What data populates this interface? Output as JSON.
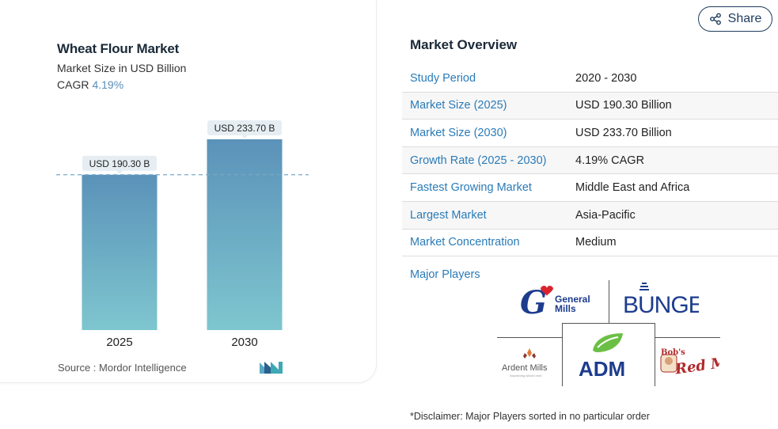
{
  "header": {
    "share_label": "Share"
  },
  "chart_header": {
    "title": "Wheat Flour Market",
    "subtitle": "Market Size in USD Billion",
    "cagr_label": "CAGR",
    "cagr_value": "4.19%"
  },
  "chart_data": {
    "type": "bar",
    "categories": [
      "2025",
      "2030"
    ],
    "values": [
      190.3,
      233.7
    ],
    "data_labels": [
      "USD 190.30 B",
      "USD 233.70 B"
    ],
    "title": "Wheat Flour Market",
    "subtitle": "Market Size in USD Billion",
    "ylim": [
      0,
      233.7
    ],
    "reference_line": 190.3,
    "colors": {
      "bar_top": "#5b92b9",
      "bar_bottom": "#7ec6cf",
      "label_bg": "#e6eef3"
    }
  },
  "source": {
    "text": "Source :  Mordor Intelligence"
  },
  "overview": {
    "title": "Market Overview",
    "rows": [
      {
        "key": "Study Period",
        "value": "2020 - 2030"
      },
      {
        "key": "Market Size (2025)",
        "value": "USD 190.30 Billion"
      },
      {
        "key": "Market Size (2030)",
        "value": "USD 233.70 Billion"
      },
      {
        "key": "Growth Rate (2025 - 2030)",
        "value": "4.19% CAGR"
      },
      {
        "key": "Fastest Growing Market",
        "value": "Middle East and Africa"
      },
      {
        "key": "Largest Market",
        "value": "Asia-Pacific"
      },
      {
        "key": "Market Concentration",
        "value": "Medium"
      }
    ]
  },
  "major_players": {
    "label": "Major Players",
    "logos": [
      "General Mills",
      "BUNGE",
      "Ardent Mills",
      "ADM",
      "Bob's Red Mill"
    ]
  },
  "disclaimer": "*Disclaimer: Major Players sorted in no particular order"
}
